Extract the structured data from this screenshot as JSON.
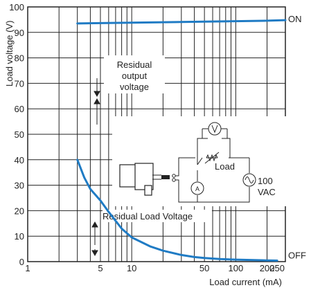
{
  "chart_data": {
    "type": "line",
    "xlabel": "Load current (mA)",
    "ylabel": "Load voltage (V)",
    "x_scale": "log",
    "xlim": [
      1,
      300
    ],
    "ylim": [
      0,
      100
    ],
    "x_ticks": [
      1,
      5,
      10,
      50,
      100,
      200,
      250
    ],
    "y_ticks": [
      0,
      10,
      20,
      30,
      40,
      50,
      60,
      70,
      80,
      90,
      100
    ],
    "grid": true,
    "series": [
      {
        "name": "ON",
        "color": "#1f7bc4",
        "x": [
          3,
          10,
          50,
          100,
          200,
          300
        ],
        "y": [
          93.5,
          93.8,
          94.2,
          94.4,
          94.6,
          94.8
        ]
      },
      {
        "name": "OFF",
        "color": "#1f7bc4",
        "x": [
          3,
          3.5,
          4,
          5,
          6,
          7,
          8,
          10,
          15,
          20,
          30,
          40,
          50,
          70,
          100,
          150,
          200,
          250
        ],
        "y": [
          40,
          33,
          28.5,
          24,
          19.5,
          16,
          13,
          9.5,
          6,
          4.3,
          2.6,
          1.8,
          1.4,
          1.0,
          0.8,
          0.6,
          0.5,
          0.4
        ]
      }
    ],
    "annotations": {
      "residual_output": [
        "Residual",
        "output",
        "voltage"
      ],
      "residual_load": "Residual Load Voltage",
      "circuit_load": "Load",
      "circuit_source": [
        "100",
        "VAC"
      ]
    }
  }
}
